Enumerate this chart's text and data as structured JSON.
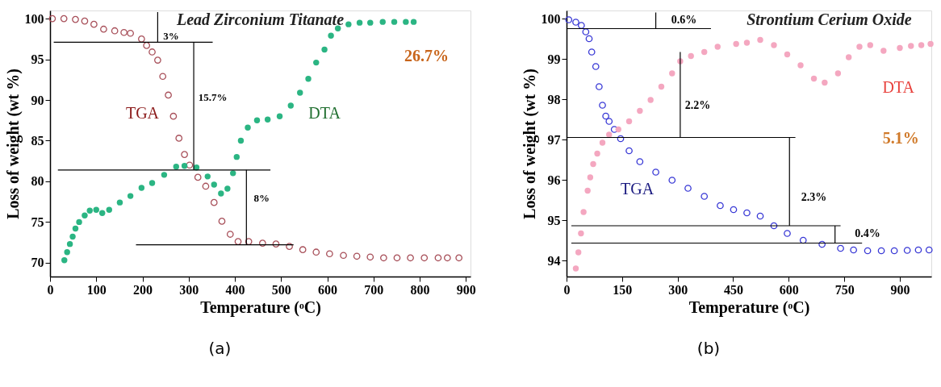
{
  "chart_data": [
    {
      "type": "scatter",
      "title": "Lead Zirconium Titanate",
      "xlabel": "Temperature (ᵒC)",
      "ylabel": "Loss of weight (wt %)",
      "xlim": [
        0,
        910
      ],
      "ylim": [
        68.3,
        101
      ],
      "xticks": [
        0,
        100,
        200,
        300,
        400,
        500,
        600,
        700,
        800,
        900
      ],
      "yticks": [
        70,
        75,
        80,
        85,
        90,
        95,
        100
      ],
      "grid": false,
      "series": [
        {
          "name": "TGA",
          "color": "#a8505a",
          "marker": "circle",
          "x": [
            5,
            30,
            55,
            75,
            95,
            116,
            140,
            160,
            174,
            198,
            209,
            221,
            233,
            244,
            256,
            267,
            279,
            291,
            302,
            320,
            337,
            355,
            372,
            390,
            407,
            430,
            460,
            489,
            518,
            547,
            576,
            605,
            635,
            664,
            693,
            722,
            751,
            780,
            810,
            840,
            860,
            885
          ],
          "values": [
            100,
            100,
            99.9,
            99.7,
            99.3,
            98.7,
            98.5,
            98.3,
            98.2,
            97.5,
            96.7,
            95.9,
            94.9,
            92.9,
            90.6,
            88,
            85.3,
            83.3,
            82,
            80.5,
            79.4,
            77.4,
            75.1,
            73.5,
            72.6,
            72.6,
            72.4,
            72.3,
            72,
            71.6,
            71.3,
            71.1,
            70.9,
            70.8,
            70.7,
            70.6,
            70.6,
            70.6,
            70.6,
            70.6,
            70.6,
            70.6
          ]
        },
        {
          "name": "DTA",
          "color": "#2bb583",
          "marker": "circle",
          "x": [
            31,
            37,
            43,
            49,
            55,
            63,
            75,
            86,
            100,
            113,
            128,
            151,
            174,
            198,
            221,
            247,
            273,
            291,
            317,
            341,
            355,
            370,
            384,
            396,
            404,
            413,
            428,
            448,
            471,
            497,
            521,
            541,
            559,
            576,
            594,
            608,
            623,
            646,
            670,
            693,
            720,
            745,
            770,
            787
          ],
          "values": [
            70.3,
            71.3,
            72.3,
            73.2,
            74.2,
            75,
            75.8,
            76.4,
            76.5,
            76.1,
            76.5,
            77.4,
            78.2,
            79.2,
            79.8,
            80.8,
            81.8,
            81.9,
            81.7,
            80.6,
            79.6,
            78.5,
            79.1,
            81,
            83,
            85,
            86.6,
            87.5,
            87.6,
            88,
            89.3,
            90.9,
            92.6,
            94.6,
            96.2,
            97.9,
            98.8,
            99.3,
            99.5,
            99.5,
            99.6,
            99.6,
            99.6,
            99.6
          ]
        },
        {
          "type": "line",
          "color": "#000000",
          "marker": "none",
          "x": [
            8,
            352
          ],
          "values": [
            97.1,
            97.1
          ]
        },
        {
          "type": "line",
          "color": "#000000",
          "marker": "none",
          "x": [
            17,
            477
          ],
          "values": [
            81.4,
            81.4
          ]
        },
        {
          "type": "line",
          "color": "#000000",
          "marker": "none",
          "x": [
            186,
            527
          ],
          "values": [
            72.2,
            72.2
          ]
        },
        {
          "type": "line",
          "color": "#000000",
          "marker": "none",
          "x": [
            233,
            233
          ],
          "values": [
            100.8,
            97.1
          ]
        },
        {
          "type": "line",
          "color": "#000000",
          "marker": "none",
          "x": [
            311,
            311
          ],
          "values": [
            97.1,
            81.4
          ]
        },
        {
          "type": "line",
          "color": "#000000",
          "marker": "none",
          "x": [
            425,
            425
          ],
          "values": [
            81.4,
            72.2
          ]
        }
      ],
      "annotations": [
        "3%",
        "15.7%",
        "8%",
        "26.7%",
        "(a)"
      ]
    },
    {
      "type": "scatter",
      "title": "Strontium  Cerium Oxide",
      "xlabel": "Temperature (ᵒC)",
      "ylabel": "Loss of weight (wt %)",
      "xlim": [
        0,
        985
      ],
      "ylim": [
        93.6,
        100.2
      ],
      "xticks": [
        0,
        150,
        300,
        450,
        600,
        750,
        900
      ],
      "yticks": [
        94,
        95,
        96,
        97,
        98,
        99,
        100
      ],
      "grid": false,
      "series": [
        {
          "name": "TGA",
          "color": "#3a3ad6",
          "marker": "circle",
          "x": [
            6,
            25,
            40,
            52,
            61,
            68,
            79,
            88,
            97,
            106,
            115,
            129,
            146,
            169,
            198,
            241,
            285,
            328,
            372,
            415,
            451,
            487,
            523,
            560,
            596,
            639,
            690,
            740,
            775,
            813,
            850,
            885,
            920,
            950,
            979
          ],
          "values": [
            99.97,
            99.91,
            99.83,
            99.67,
            99.5,
            99.17,
            98.81,
            98.31,
            97.85,
            97.58,
            97.45,
            97.25,
            97.02,
            96.72,
            96.45,
            96.19,
            95.99,
            95.79,
            95.59,
            95.36,
            95.26,
            95.18,
            95.1,
            94.86,
            94.67,
            94.5,
            94.4,
            94.3,
            94.26,
            94.24,
            94.24,
            94.24,
            94.25,
            94.26,
            94.26
          ]
        },
        {
          "name": "DTA",
          "color": "#f4a7c0",
          "marker": "circle",
          "x": [
            25,
            32,
            39,
            46,
            57,
            64,
            72,
            83,
            97,
            115,
            140,
            169,
            198,
            227,
            256,
            285,
            307,
            336,
            372,
            408,
            458,
            487,
            523,
            560,
            596,
            632,
            668,
            697,
            733,
            762,
            791,
            820,
            856,
            900,
            930,
            958,
            983
          ],
          "values": [
            93.8,
            94.2,
            94.67,
            95.2,
            95.73,
            96.06,
            96.39,
            96.65,
            96.92,
            97.12,
            97.25,
            97.45,
            97.71,
            97.98,
            98.31,
            98.64,
            98.94,
            99.07,
            99.17,
            99.3,
            99.37,
            99.4,
            99.47,
            99.34,
            99.11,
            98.84,
            98.51,
            98.41,
            98.64,
            99.04,
            99.3,
            99.34,
            99.2,
            99.27,
            99.32,
            99.34,
            99.37
          ]
        },
        {
          "type": "line",
          "color": "#000000",
          "marker": "none",
          "x": [
            0,
            390
          ],
          "values": [
            99.75,
            99.75
          ]
        },
        {
          "type": "line",
          "color": "#000000",
          "marker": "none",
          "x": [
            0,
            618
          ],
          "values": [
            97.05,
            97.05
          ]
        },
        {
          "type": "line",
          "color": "#000000",
          "marker": "none",
          "x": [
            13,
            740
          ],
          "values": [
            94.86,
            94.86
          ]
        },
        {
          "type": "line",
          "color": "#000000",
          "marker": "none",
          "x": [
            13,
            798
          ],
          "values": [
            94.43,
            94.43
          ]
        },
        {
          "type": "line",
          "color": "#000000",
          "marker": "none",
          "x": [
            241,
            241
          ],
          "values": [
            100.15,
            99.75
          ]
        },
        {
          "type": "line",
          "color": "#000000",
          "marker": "none",
          "x": [
            307,
            307
          ],
          "values": [
            99.17,
            97.05
          ]
        },
        {
          "type": "line",
          "color": "#000000",
          "marker": "none",
          "x": [
            602,
            602
          ],
          "values": [
            97.05,
            94.86
          ]
        },
        {
          "type": "line",
          "color": "#000000",
          "marker": "none",
          "x": [
            725,
            725
          ],
          "values": [
            94.86,
            94.43
          ]
        }
      ],
      "annotations": [
        "0.6%",
        "2.2%",
        "2.3%",
        "0.4%",
        "5.1%",
        "(b)"
      ]
    }
  ]
}
